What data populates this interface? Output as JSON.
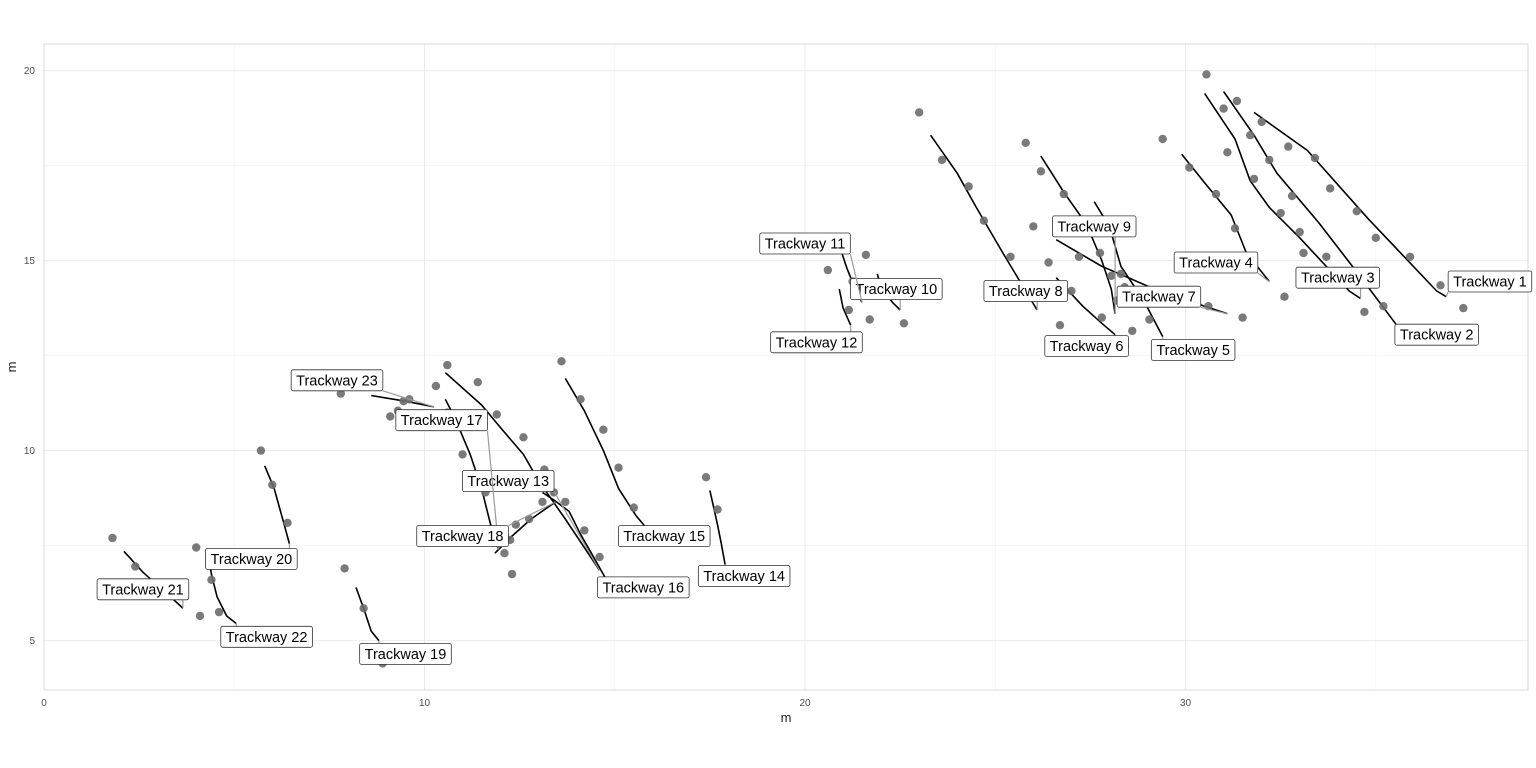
{
  "chart_data": {
    "type": "scatter",
    "title": "",
    "xlabel": "m",
    "ylabel": "m",
    "xlim": [
      0,
      39
    ],
    "ylim": [
      3.7,
      20.7
    ],
    "x_ticks": [
      0,
      10,
      20,
      30
    ],
    "y_ticks": [
      5,
      10,
      15,
      20
    ],
    "grid": true,
    "legend": "none",
    "colors": {
      "point": "#6b6b6b",
      "trackway_line": "#000000",
      "leader_line": "#9a9a9a",
      "label_border": "#333333",
      "panel_border": "#d9d9d9",
      "grid": "#ebebeb"
    },
    "points": [
      {
        "x": 1.8,
        "y": 7.7
      },
      {
        "x": 2.4,
        "y": 6.95
      },
      {
        "x": 4.0,
        "y": 7.45
      },
      {
        "x": 4.1,
        "y": 5.65
      },
      {
        "x": 4.4,
        "y": 6.6
      },
      {
        "x": 4.6,
        "y": 5.75
      },
      {
        "x": 5.7,
        "y": 10.0
      },
      {
        "x": 6.0,
        "y": 9.1
      },
      {
        "x": 6.4,
        "y": 8.1
      },
      {
        "x": 7.8,
        "y": 11.5
      },
      {
        "x": 7.9,
        "y": 6.9
      },
      {
        "x": 8.4,
        "y": 5.85
      },
      {
        "x": 8.9,
        "y": 4.4
      },
      {
        "x": 9.1,
        "y": 10.9
      },
      {
        "x": 9.3,
        "y": 11.05
      },
      {
        "x": 9.45,
        "y": 11.3
      },
      {
        "x": 9.6,
        "y": 11.35
      },
      {
        "x": 10.3,
        "y": 11.7
      },
      {
        "x": 10.6,
        "y": 12.25
      },
      {
        "x": 10.6,
        "y": 11.0
      },
      {
        "x": 10.9,
        "y": 10.95
      },
      {
        "x": 11.0,
        "y": 9.9
      },
      {
        "x": 11.4,
        "y": 11.8
      },
      {
        "x": 11.6,
        "y": 8.9
      },
      {
        "x": 11.9,
        "y": 10.95
      },
      {
        "x": 12.1,
        "y": 7.3
      },
      {
        "x": 12.25,
        "y": 7.65
      },
      {
        "x": 12.3,
        "y": 6.75
      },
      {
        "x": 12.4,
        "y": 8.05
      },
      {
        "x": 12.6,
        "y": 10.35
      },
      {
        "x": 12.75,
        "y": 8.2
      },
      {
        "x": 13.1,
        "y": 8.65
      },
      {
        "x": 13.15,
        "y": 9.5
      },
      {
        "x": 13.4,
        "y": 8.9
      },
      {
        "x": 13.6,
        "y": 12.35
      },
      {
        "x": 13.7,
        "y": 8.65
      },
      {
        "x": 14.1,
        "y": 11.35
      },
      {
        "x": 14.2,
        "y": 7.9
      },
      {
        "x": 14.6,
        "y": 7.2
      },
      {
        "x": 14.7,
        "y": 10.55
      },
      {
        "x": 15.1,
        "y": 9.55
      },
      {
        "x": 15.5,
        "y": 8.5
      },
      {
        "x": 17.4,
        "y": 9.3
      },
      {
        "x": 17.7,
        "y": 8.45
      },
      {
        "x": 20.6,
        "y": 14.75
      },
      {
        "x": 21.15,
        "y": 13.7
      },
      {
        "x": 21.25,
        "y": 14.45
      },
      {
        "x": 21.6,
        "y": 15.15
      },
      {
        "x": 21.7,
        "y": 13.45
      },
      {
        "x": 22.6,
        "y": 13.35
      },
      {
        "x": 23.0,
        "y": 18.9
      },
      {
        "x": 23.6,
        "y": 17.65
      },
      {
        "x": 24.3,
        "y": 16.95
      },
      {
        "x": 24.7,
        "y": 16.05
      },
      {
        "x": 25.4,
        "y": 15.1
      },
      {
        "x": 25.8,
        "y": 18.1
      },
      {
        "x": 26.0,
        "y": 15.9
      },
      {
        "x": 26.2,
        "y": 17.35
      },
      {
        "x": 26.4,
        "y": 14.95
      },
      {
        "x": 26.7,
        "y": 13.3
      },
      {
        "x": 26.8,
        "y": 16.75
      },
      {
        "x": 27.0,
        "y": 14.2
      },
      {
        "x": 27.2,
        "y": 15.1
      },
      {
        "x": 27.75,
        "y": 15.2
      },
      {
        "x": 27.8,
        "y": 13.5
      },
      {
        "x": 28.05,
        "y": 14.6
      },
      {
        "x": 28.2,
        "y": 13.95
      },
      {
        "x": 28.3,
        "y": 14.65
      },
      {
        "x": 28.4,
        "y": 14.3
      },
      {
        "x": 28.4,
        "y": 12.75
      },
      {
        "x": 28.6,
        "y": 13.15
      },
      {
        "x": 29.05,
        "y": 13.45
      },
      {
        "x": 29.4,
        "y": 18.2
      },
      {
        "x": 30.1,
        "y": 17.45
      },
      {
        "x": 30.55,
        "y": 19.9
      },
      {
        "x": 30.6,
        "y": 13.8
      },
      {
        "x": 30.8,
        "y": 16.75
      },
      {
        "x": 31.0,
        "y": 19.0
      },
      {
        "x": 31.1,
        "y": 17.85
      },
      {
        "x": 31.3,
        "y": 15.85
      },
      {
        "x": 31.35,
        "y": 19.2
      },
      {
        "x": 31.5,
        "y": 13.5
      },
      {
        "x": 31.7,
        "y": 18.3
      },
      {
        "x": 31.8,
        "y": 17.15
      },
      {
        "x": 32.0,
        "y": 18.65
      },
      {
        "x": 32.2,
        "y": 17.65
      },
      {
        "x": 32.5,
        "y": 16.25
      },
      {
        "x": 32.6,
        "y": 14.05
      },
      {
        "x": 32.7,
        "y": 18.0
      },
      {
        "x": 32.8,
        "y": 16.7
      },
      {
        "x": 33.0,
        "y": 15.75
      },
      {
        "x": 33.1,
        "y": 15.2
      },
      {
        "x": 33.4,
        "y": 17.7
      },
      {
        "x": 33.7,
        "y": 15.1
      },
      {
        "x": 33.8,
        "y": 16.9
      },
      {
        "x": 34.5,
        "y": 16.3
      },
      {
        "x": 34.7,
        "y": 13.65
      },
      {
        "x": 35.0,
        "y": 15.6
      },
      {
        "x": 35.2,
        "y": 13.8
      },
      {
        "x": 35.9,
        "y": 15.1
      },
      {
        "x": 36.7,
        "y": 14.35
      },
      {
        "x": 37.3,
        "y": 13.75
      }
    ],
    "trackways": [
      {
        "label": "Trackway 1",
        "path": [
          [
            31.8,
            18.9
          ],
          [
            33.2,
            17.9
          ],
          [
            34.8,
            16.1
          ],
          [
            36.6,
            14.2
          ],
          [
            36.85,
            14.05
          ]
        ],
        "label_at": [
          38.0,
          14.45
        ]
      },
      {
        "label": "Trackway 2",
        "path": [
          [
            31.0,
            19.45
          ],
          [
            31.8,
            18.3
          ],
          [
            32.4,
            17.3
          ],
          [
            33.5,
            16.0
          ],
          [
            34.5,
            14.7
          ],
          [
            35.55,
            13.3
          ]
        ],
        "label_at": [
          36.6,
          13.05
        ]
      },
      {
        "label": "Trackway 3",
        "path": [
          [
            30.5,
            19.4
          ],
          [
            31.3,
            18.2
          ],
          [
            31.7,
            17.1
          ],
          [
            32.2,
            16.4
          ],
          [
            33.0,
            15.6
          ],
          [
            34.3,
            14.2
          ],
          [
            34.6,
            14.0
          ]
        ],
        "label_at": [
          34.0,
          14.55
        ]
      },
      {
        "label": "Trackway 4",
        "path": [
          [
            29.9,
            17.8
          ],
          [
            30.5,
            17.05
          ],
          [
            31.2,
            16.2
          ],
          [
            31.6,
            15.2
          ],
          [
            32.2,
            14.45
          ]
        ],
        "label_at": [
          30.8,
          14.95
        ]
      },
      {
        "label": "Trackway 5",
        "path": [
          [
            27.6,
            16.55
          ],
          [
            28.0,
            15.9
          ],
          [
            28.3,
            14.85
          ],
          [
            28.9,
            13.95
          ],
          [
            29.4,
            13.0
          ]
        ],
        "label_at": [
          30.2,
          12.65
        ]
      },
      {
        "label": "Trackway 6",
        "path": [
          [
            26.6,
            14.55
          ],
          [
            27.3,
            13.8
          ],
          [
            27.8,
            13.35
          ],
          [
            28.15,
            13.05
          ]
        ],
        "label_at": [
          27.4,
          12.75
        ]
      },
      {
        "label": "Trackway 7",
        "path": [
          [
            26.6,
            15.55
          ],
          [
            27.8,
            14.85
          ],
          [
            29.3,
            14.2
          ],
          [
            31.1,
            13.6
          ]
        ],
        "label_at": [
          29.3,
          14.05
        ]
      },
      {
        "label": "Trackway 8",
        "path": [
          [
            23.3,
            18.3
          ],
          [
            24.0,
            17.3
          ],
          [
            24.5,
            16.4
          ],
          [
            25.2,
            15.2
          ],
          [
            25.8,
            14.2
          ],
          [
            26.1,
            13.7
          ]
        ],
        "label_at": [
          25.8,
          14.2
        ]
      },
      {
        "label": "Trackway 9",
        "path": [
          [
            26.2,
            17.75
          ],
          [
            26.8,
            16.8
          ],
          [
            27.4,
            15.95
          ],
          [
            27.8,
            15.0
          ],
          [
            28.05,
            14.25
          ],
          [
            28.15,
            13.6
          ]
        ],
        "label_at": [
          27.6,
          15.9
        ]
      },
      {
        "label": "Trackway 10",
        "path": [
          [
            21.9,
            14.65
          ],
          [
            22.0,
            14.3
          ],
          [
            22.3,
            13.9
          ],
          [
            22.5,
            13.7
          ]
        ],
        "label_at": [
          22.4,
          14.25
        ]
      },
      {
        "label": "Trackway 11",
        "path": [
          [
            20.9,
            15.4
          ],
          [
            21.1,
            14.8
          ],
          [
            21.3,
            14.3
          ],
          [
            21.5,
            13.9
          ]
        ],
        "label_at": [
          20.0,
          15.45
        ]
      },
      {
        "label": "Trackway 12",
        "path": [
          [
            20.9,
            14.25
          ],
          [
            21.0,
            13.75
          ],
          [
            21.2,
            13.3
          ]
        ],
        "label_at": [
          20.3,
          12.85
        ]
      },
      {
        "label": "Trackway 13",
        "path": [
          [
            10.55,
            12.05
          ],
          [
            11.5,
            11.2
          ],
          [
            12.0,
            10.6
          ],
          [
            12.6,
            9.9
          ],
          [
            13.0,
            9.2
          ],
          [
            13.7,
            8.2
          ],
          [
            14.3,
            7.3
          ],
          [
            14.6,
            6.85
          ]
        ],
        "label_at": [
          12.2,
          9.2
        ]
      },
      {
        "label": "Trackway 14",
        "path": [
          [
            17.5,
            8.95
          ],
          [
            17.7,
            8.05
          ],
          [
            17.8,
            7.55
          ],
          [
            17.9,
            7.0
          ]
        ],
        "label_at": [
          18.4,
          6.7
        ]
      },
      {
        "label": "Trackway 15",
        "path": [
          [
            13.7,
            11.9
          ],
          [
            14.2,
            11.05
          ],
          [
            14.7,
            10.0
          ],
          [
            15.1,
            9.0
          ],
          [
            15.55,
            8.3
          ],
          [
            15.8,
            8.0
          ]
        ],
        "label_at": [
          16.3,
          7.75
        ]
      },
      {
        "label": "Trackway 16",
        "path": [
          [
            13.1,
            8.9
          ],
          [
            13.4,
            8.7
          ],
          [
            13.8,
            8.4
          ],
          [
            14.1,
            7.8
          ],
          [
            14.5,
            7.1
          ],
          [
            14.75,
            6.65
          ]
        ],
        "label_at": [
          15.75,
          6.4
        ]
      },
      {
        "label": "Trackway 17",
        "path": [
          [
            10.55,
            11.35
          ],
          [
            10.8,
            10.85
          ],
          [
            11.2,
            9.9
          ],
          [
            11.5,
            9.0
          ],
          [
            11.75,
            8.0
          ],
          [
            11.95,
            7.4
          ]
        ],
        "label_at": [
          10.45,
          10.8
        ]
      },
      {
        "label": "Trackway 18",
        "path": [
          [
            11.85,
            7.3
          ],
          [
            12.3,
            7.75
          ],
          [
            12.8,
            8.2
          ],
          [
            13.3,
            8.55
          ],
          [
            13.45,
            8.65
          ]
        ],
        "label_at": [
          11.0,
          7.75
        ]
      },
      {
        "label": "Trackway 19",
        "path": [
          [
            8.2,
            6.4
          ],
          [
            8.4,
            5.85
          ],
          [
            8.6,
            5.25
          ],
          [
            8.8,
            5.0
          ]
        ],
        "label_at": [
          9.5,
          4.65
        ]
      },
      {
        "label": "Trackway 20",
        "path": [
          [
            5.8,
            9.6
          ],
          [
            6.05,
            9.0
          ],
          [
            6.3,
            8.1
          ],
          [
            6.45,
            7.55
          ]
        ],
        "label_at": [
          5.45,
          7.15
        ]
      },
      {
        "label": "Trackway 21",
        "path": [
          [
            2.1,
            7.35
          ],
          [
            2.6,
            6.8
          ],
          [
            3.1,
            6.35
          ],
          [
            3.6,
            5.9
          ],
          [
            3.65,
            5.85
          ]
        ],
        "label_at": [
          2.6,
          6.35
        ]
      },
      {
        "label": "Trackway 22",
        "path": [
          [
            4.3,
            7.35
          ],
          [
            4.4,
            6.75
          ],
          [
            4.55,
            6.15
          ],
          [
            4.8,
            5.65
          ],
          [
            5.05,
            5.45
          ]
        ],
        "label_at": [
          5.85,
          5.1
        ]
      },
      {
        "label": "Trackway 23",
        "path": [
          [
            8.6,
            11.45
          ],
          [
            9.5,
            11.3
          ],
          [
            10.25,
            11.15
          ]
        ],
        "label_at": [
          7.7,
          11.85
        ]
      }
    ]
  }
}
